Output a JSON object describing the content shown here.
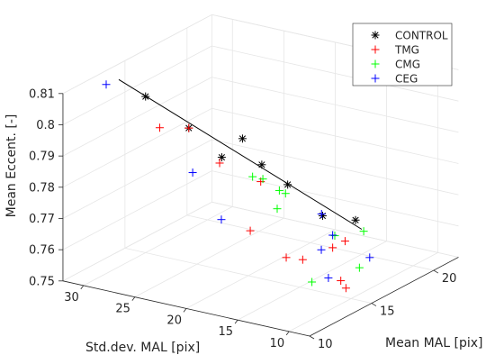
{
  "chart_data": {
    "type": "scatter",
    "projection": "3d",
    "title": "",
    "xlabel": "Mean MAL [pix]",
    "ylabel": "Std.dev. MAL [pix]",
    "zlabel": "Mean Eccent. [-]",
    "xlim": [
      10,
      22
    ],
    "ylim": [
      8,
      32
    ],
    "zlim": [
      0.75,
      0.81
    ],
    "xticks": [
      "10",
      "15",
      "20"
    ],
    "yticks": [
      "10",
      "15",
      "20",
      "25",
      "30"
    ],
    "zticks": [
      "0.75",
      "0.76",
      "0.77",
      "0.78",
      "0.79",
      "0.8",
      "0.81"
    ],
    "grid": true,
    "legend_position": "top-right",
    "series": [
      {
        "name": "CONTROL",
        "marker": "*",
        "color": "#000000",
        "points": [
          [
            15.0,
            30.0,
            0.8
          ],
          [
            16.0,
            27.0,
            0.79
          ],
          [
            17.0,
            25.0,
            0.78
          ],
          [
            19.5,
            26.0,
            0.78
          ],
          [
            19.0,
            21.0,
            0.77
          ],
          [
            18.5,
            17.0,
            0.764
          ],
          [
            19.5,
            15.0,
            0.762
          ],
          [
            16.5,
            20.5,
            0.782
          ]
        ]
      },
      {
        "name": "TMG",
        "marker": "+",
        "color": "#ff0000",
        "points": [
          [
            12.0,
            25.0,
            0.8
          ],
          [
            16.0,
            27.0,
            0.79
          ],
          [
            16.0,
            24.0,
            0.781
          ],
          [
            16.0,
            20.0,
            0.778
          ],
          [
            13.5,
            18.0,
            0.769
          ],
          [
            13.5,
            14.5,
            0.763
          ],
          [
            14.0,
            13.5,
            0.762
          ],
          [
            16.0,
            13.0,
            0.762
          ],
          [
            17.0,
            13.0,
            0.762
          ],
          [
            15.0,
            11.0,
            0.755
          ],
          [
            15.0,
            10.5,
            0.753
          ]
        ]
      },
      {
        "name": "CMG",
        "marker": "+",
        "color": "#00ff00",
        "points": [
          [
            17.0,
            22.0,
            0.776
          ],
          [
            17.0,
            21.0,
            0.776
          ],
          [
            17.5,
            20.0,
            0.772
          ],
          [
            16.5,
            19.0,
            0.769
          ],
          [
            18.0,
            20.0,
            0.77
          ],
          [
            17.0,
            14.0,
            0.763
          ],
          [
            18.5,
            13.0,
            0.762
          ],
          [
            16.5,
            11.0,
            0.756
          ],
          [
            13.5,
            12.0,
            0.757
          ]
        ]
      },
      {
        "name": "CEG",
        "marker": "+",
        "color": "#0000ff",
        "points": [
          [
            11.0,
            29.0,
            0.813
          ],
          [
            13.0,
            23.0,
            0.785
          ],
          [
            12.0,
            19.0,
            0.775
          ],
          [
            16.0,
            13.0,
            0.766
          ],
          [
            16.5,
            10.0,
            0.76
          ],
          [
            14.0,
            11.0,
            0.758
          ],
          [
            15.5,
            13.5,
            0.762
          ],
          [
            18.0,
            16.5,
            0.766
          ]
        ]
      }
    ],
    "fit_line": {
      "color": "#000000",
      "from": [
        14.5,
        32.0,
        0.805
      ],
      "to": [
        20.0,
        15.0,
        0.758
      ]
    }
  }
}
